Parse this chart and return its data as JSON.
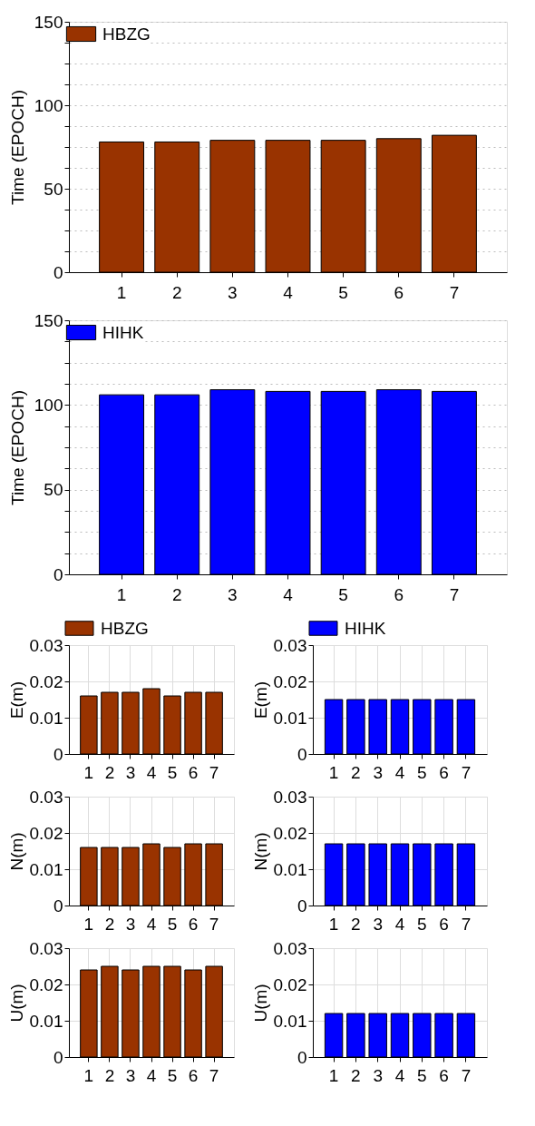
{
  "chart_data": [
    {
      "type": "bar",
      "categories": [
        "1",
        "2",
        "3",
        "4",
        "5",
        "6",
        "7"
      ],
      "ylabel": "Time (EPOCH)",
      "ylim": [
        0,
        150
      ],
      "yticks": [
        0,
        {
          "value": 12.5,
          "label": null
        },
        {
          "value": 25,
          "label": null
        },
        {
          "value": 37.5,
          "label": null
        },
        50,
        {
          "value": 62.5,
          "label": null
        },
        {
          "value": 75,
          "label": null
        },
        {
          "value": 87.5,
          "label": null
        },
        100,
        {
          "value": 112.5,
          "label": null
        },
        {
          "value": 125,
          "label": null
        },
        {
          "value": 137.5,
          "label": null
        },
        150
      ],
      "grid": "y",
      "legend": "top left",
      "series": [
        {
          "name": "HBZG",
          "color": "#993300",
          "values": [
            78,
            78,
            79,
            79,
            79,
            80,
            82
          ]
        }
      ]
    },
    {
      "type": "bar",
      "categories": [
        "1",
        "2",
        "3",
        "4",
        "5",
        "6",
        "7"
      ],
      "ylabel": "Time (EPOCH)",
      "ylim": [
        0,
        150
      ],
      "yticks": [
        0,
        {
          "value": 12.5,
          "label": null
        },
        {
          "value": 25,
          "label": null
        },
        {
          "value": 37.5,
          "label": null
        },
        50,
        {
          "value": 62.5,
          "label": null
        },
        {
          "value": 75,
          "label": null
        },
        {
          "value": 87.5,
          "label": null
        },
        100,
        {
          "value": 112.5,
          "label": null
        },
        {
          "value": 125,
          "label": null
        },
        {
          "value": 137.5,
          "label": null
        },
        150
      ],
      "grid": "y",
      "legend": "top left",
      "series": [
        {
          "name": "HIHK",
          "color": "#0000ff",
          "values": [
            106,
            106,
            109,
            108,
            108,
            109,
            108
          ]
        }
      ]
    },
    {
      "type": "bar",
      "categories": [
        "1",
        "2",
        "3",
        "4",
        "5",
        "6",
        "7"
      ],
      "ylabel": "E(m)",
      "ylim": [
        0,
        0.03
      ],
      "yticks": [
        0,
        0.01,
        0.02,
        0.03
      ],
      "grid": true,
      "legend": "top",
      "series": [
        {
          "name": "HBZG",
          "color": "#993300",
          "values": [
            0.016,
            0.017,
            0.017,
            0.018,
            0.016,
            0.017,
            0.017
          ]
        }
      ]
    },
    {
      "type": "bar",
      "categories": [
        "1",
        "2",
        "3",
        "4",
        "5",
        "6",
        "7"
      ],
      "ylabel": "E(m)",
      "ylim": [
        0,
        0.03
      ],
      "yticks": [
        0,
        0.01,
        0.02,
        0.03
      ],
      "grid": true,
      "legend": "top",
      "series": [
        {
          "name": "HIHK",
          "color": "#0000ff",
          "values": [
            0.015,
            0.015,
            0.015,
            0.015,
            0.015,
            0.015,
            0.015
          ]
        }
      ]
    },
    {
      "type": "bar",
      "categories": [
        "1",
        "2",
        "3",
        "4",
        "5",
        "6",
        "7"
      ],
      "ylabel": "N(m)",
      "ylim": [
        0,
        0.03
      ],
      "yticks": [
        0,
        0.01,
        0.02,
        0.03
      ],
      "grid": true,
      "series": [
        {
          "color": "#993300",
          "values": [
            0.016,
            0.016,
            0.016,
            0.017,
            0.016,
            0.017,
            0.017
          ]
        }
      ]
    },
    {
      "type": "bar",
      "categories": [
        "1",
        "2",
        "3",
        "4",
        "5",
        "6",
        "7"
      ],
      "ylabel": "N(m)",
      "ylim": [
        0,
        0.03
      ],
      "yticks": [
        0,
        0.01,
        0.02,
        0.03
      ],
      "grid": true,
      "series": [
        {
          "color": "#0000ff",
          "values": [
            0.017,
            0.017,
            0.017,
            0.017,
            0.017,
            0.017,
            0.017
          ]
        }
      ]
    },
    {
      "type": "bar",
      "categories": [
        "1",
        "2",
        "3",
        "4",
        "5",
        "6",
        "7"
      ],
      "ylabel": "U(m)",
      "ylim": [
        0,
        0.03
      ],
      "yticks": [
        0,
        0.01,
        0.02,
        0.03
      ],
      "grid": true,
      "series": [
        {
          "color": "#993300",
          "values": [
            0.024,
            0.025,
            0.024,
            0.025,
            0.025,
            0.024,
            0.025
          ]
        }
      ]
    },
    {
      "type": "bar",
      "categories": [
        "1",
        "2",
        "3",
        "4",
        "5",
        "6",
        "7"
      ],
      "ylabel": "U(m)",
      "ylim": [
        0,
        0.03
      ],
      "yticks": [
        0,
        0.01,
        0.02,
        0.03
      ],
      "grid": true,
      "series": [
        {
          "color": "#0000ff",
          "values": [
            0.012,
            0.012,
            0.012,
            0.012,
            0.012,
            0.012,
            0.012
          ]
        }
      ]
    }
  ]
}
